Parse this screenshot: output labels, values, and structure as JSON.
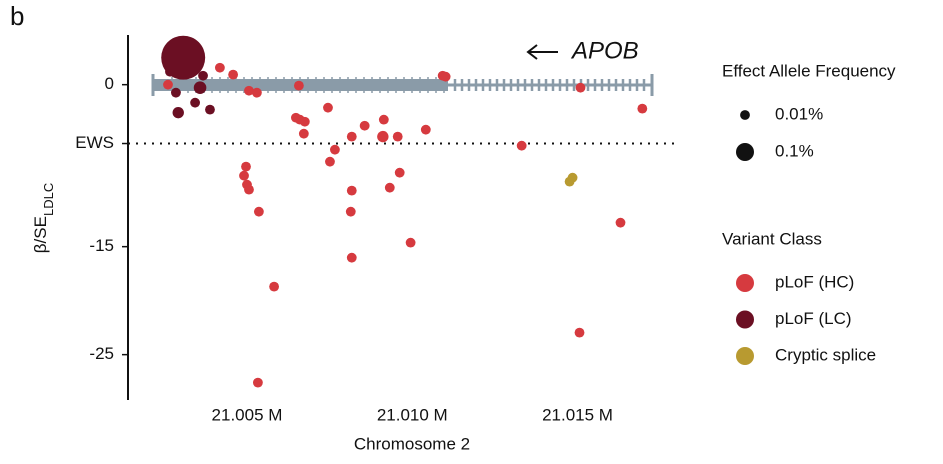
{
  "chart_data": {
    "type": "scatter",
    "panel_label": "b",
    "annotation": "APOB",
    "x_label": "Chromosome 2",
    "y_label": {
      "main": "β/SE",
      "sub": "LDLC"
    },
    "xlim": [
      21.0014,
      21.0181
    ],
    "ylim": [
      -29.2,
      4.6
    ],
    "xticks": [
      {
        "value": 21.005,
        "label": "21.005 M"
      },
      {
        "value": 21.01,
        "label": "21.010 M"
      },
      {
        "value": 21.015,
        "label": "21.015 M"
      }
    ],
    "yticks": [
      0,
      {
        "value": -5.45,
        "label": "EWS"
      },
      -15,
      -25
    ],
    "size_legend": {
      "title": "Effect Allele Frequency",
      "entries": [
        {
          "value": 0.01,
          "label": "0.01%"
        },
        {
          "value": 0.1,
          "label": "0.1%"
        }
      ]
    },
    "color_legend_title": "Variant Class",
    "series": [
      {
        "name": "pLoF (HC)",
        "color": "#d63a3f",
        "x": [
          21.00261,
          21.00289,
          21.00418,
          21.00458,
          21.0053,
          21.00506,
          21.00657,
          21.01092,
          21.01101,
          21.01509,
          21.01696,
          21.00648,
          21.0066,
          21.00675,
          21.00672,
          21.00745,
          21.00856,
          21.00817,
          21.00914,
          21.00911,
          21.00956,
          21.01041,
          21.01331,
          21.00766,
          21.00751,
          21.00497,
          21.00491,
          21.005,
          21.00506,
          21.00536,
          21.00817,
          21.00962,
          21.00932,
          21.00814,
          21.00995,
          21.00817,
          21.00582,
          21.0163,
          21.01506,
          21.00533
        ],
        "values": [
          0,
          1.11,
          1.57,
          0.93,
          -0.74,
          -0.56,
          -0.09,
          0.83,
          0.74,
          -0.28,
          -2.22,
          -3.06,
          -3.24,
          -3.43,
          -4.54,
          -2.13,
          -3.8,
          -4.81,
          -3.24,
          -4.81,
          -4.81,
          -4.17,
          -5.65,
          -6.02,
          -7.13,
          -7.59,
          -8.43,
          -9.26,
          -9.72,
          -11.76,
          -9.81,
          -8.15,
          -9.54,
          -11.76,
          -14.63,
          -16.02,
          -18.7,
          -12.78,
          -22.96,
          -27.59
        ],
        "sizes": [
          0.01,
          0.01,
          0.01,
          0.01,
          0.01,
          0.01,
          0.01,
          0.01,
          0.01,
          0.01,
          0.01,
          0.01,
          0.01,
          0.01,
          0.01,
          0.01,
          0.01,
          0.01,
          0.01,
          0.02,
          0.01,
          0.01,
          0.01,
          0.01,
          0.01,
          0.01,
          0.01,
          0.01,
          0.01,
          0.01,
          0.01,
          0.01,
          0.01,
          0.01,
          0.01,
          0.01,
          0.01,
          0.01,
          0.01,
          0.01
        ]
      },
      {
        "name": "pLoF (LC)",
        "color": "#6b0f23",
        "x": [
          21.00267,
          21.00285,
          21.00292,
          21.00343,
          21.00358,
          21.00367,
          21.00388,
          21.00307
        ],
        "values": [
          1.2,
          -0.74,
          -2.59,
          -1.67,
          -0.28,
          0.83,
          -2.31,
          2.5
        ],
        "sizes": [
          0.01,
          0.01,
          0.02,
          0.01,
          0.03,
          0.01,
          0.01,
          1
        ]
      },
      {
        "name": "Cryptic splice",
        "color": "#b89a30",
        "x": [
          21.01476,
          21.01485
        ],
        "values": [
          -8.98,
          -8.61
        ],
        "sizes": [
          0.01,
          0.01
        ]
      }
    ]
  }
}
